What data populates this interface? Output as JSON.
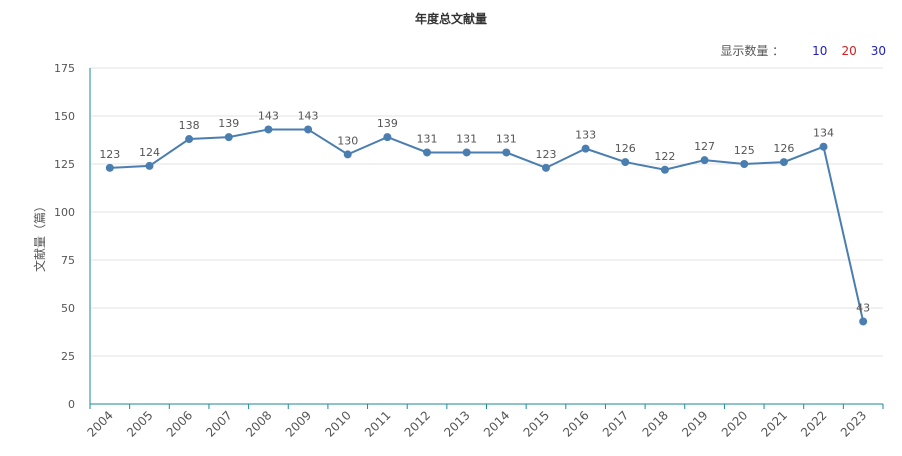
{
  "chart_data": {
    "type": "line",
    "title": "年度总文献量",
    "xlabel": "",
    "ylabel": "文献量（篇）",
    "categories": [
      "2004",
      "2005",
      "2006",
      "2007",
      "2008",
      "2009",
      "2010",
      "2011",
      "2012",
      "2013",
      "2014",
      "2015",
      "2016",
      "2017",
      "2018",
      "2019",
      "2020",
      "2021",
      "2022",
      "2023"
    ],
    "series": [
      {
        "values": [
          123,
          124,
          138,
          139,
          143,
          143,
          130,
          139,
          131,
          131,
          131,
          123,
          133,
          126,
          122,
          127,
          125,
          126,
          134,
          43
        ]
      }
    ],
    "ylim": [
      0,
      175
    ],
    "yticks": [
      0,
      25,
      50,
      75,
      100,
      125,
      150,
      175
    ],
    "grid": true,
    "line_color": "#4a7eb0",
    "axis_color": "#1a8a9a"
  },
  "count_selector": {
    "label": "显示数量 ：",
    "options": [
      {
        "text": "10",
        "color": "#2020c0"
      },
      {
        "text": "20",
        "color": "#d02020"
      },
      {
        "text": "30",
        "color": "#2020c0"
      }
    ]
  }
}
